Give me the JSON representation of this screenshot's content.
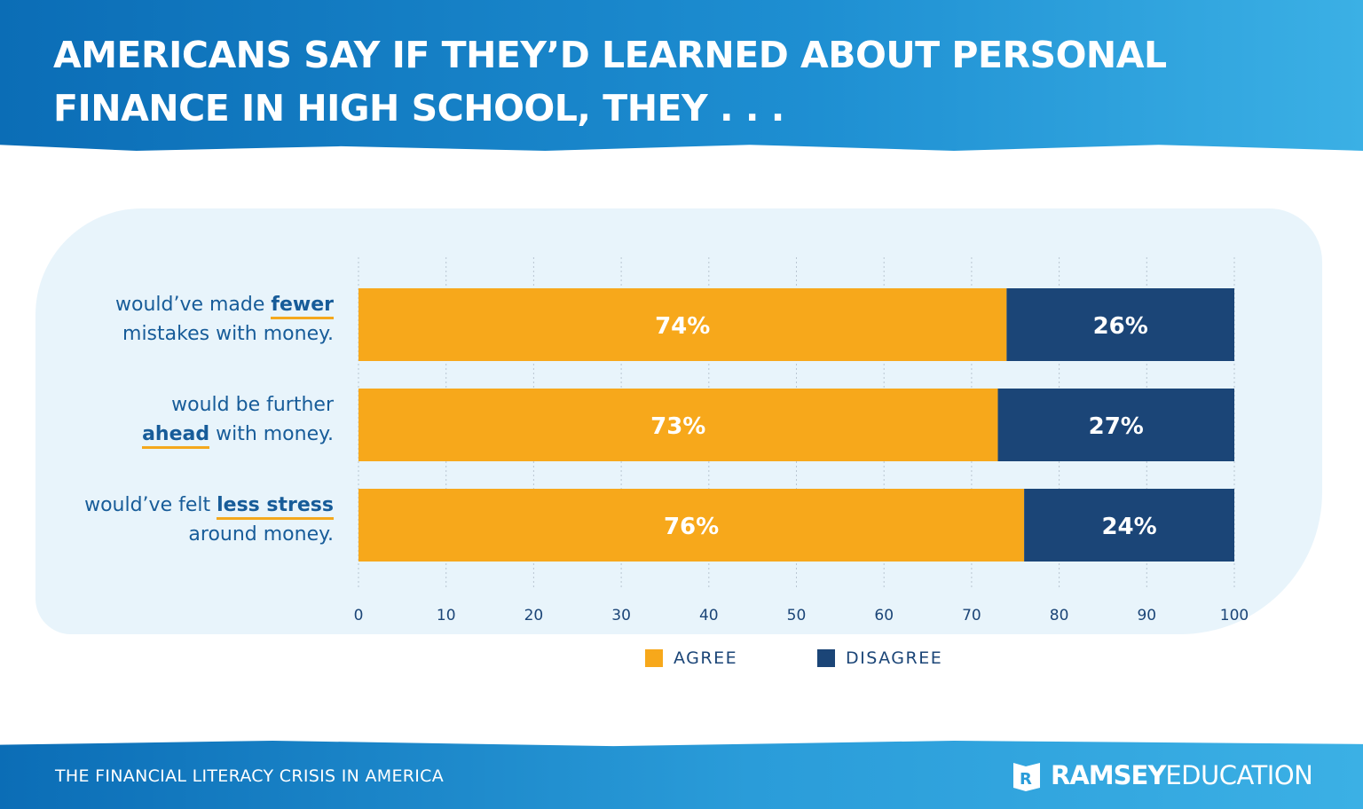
{
  "header": {
    "title": "AMERICANS SAY IF THEY’D LEARNED ABOUT PERSONAL\nFINANCE IN HIGH SCHOOL, THEY . . ."
  },
  "footer": {
    "text": "THE FINANCIAL LITERACY CRISIS IN AMERICA",
    "logo_bold": "RAMSEY",
    "logo_light": "EDUCATION",
    "logo_icon": "book-r-icon"
  },
  "colors": {
    "agree": "#f7a81b",
    "disagree": "#1b4577",
    "label": "#175c99",
    "header": "#1e8fd2"
  },
  "chart_data": {
    "type": "bar",
    "stacked": true,
    "orientation": "horizontal",
    "categories": [
      {
        "lines": [
          [
            "would’ve made ",
            "fewer",
            ""
          ],
          [
            "mistakes with money.",
            "",
            ""
          ]
        ]
      },
      {
        "lines": [
          [
            "would be further",
            "",
            ""
          ],
          [
            "",
            "ahead",
            " with money."
          ]
        ]
      },
      {
        "lines": [
          [
            "would’ve felt ",
            "less stress",
            ""
          ],
          [
            "around money.",
            "",
            ""
          ]
        ]
      }
    ],
    "series": [
      {
        "name": "AGREE",
        "values": [
          74,
          73,
          76
        ],
        "labels": [
          "74%",
          "73%",
          "76%"
        ]
      },
      {
        "name": "DISAGREE",
        "values": [
          26,
          27,
          24
        ],
        "labels": [
          "26%",
          "27%",
          "24%"
        ]
      }
    ],
    "xlim": [
      0,
      100
    ],
    "xticks": [
      "0",
      "10",
      "20",
      "30",
      "40",
      "50",
      "60",
      "70",
      "80",
      "90",
      "100"
    ],
    "grid": true,
    "legend": "bottom"
  }
}
